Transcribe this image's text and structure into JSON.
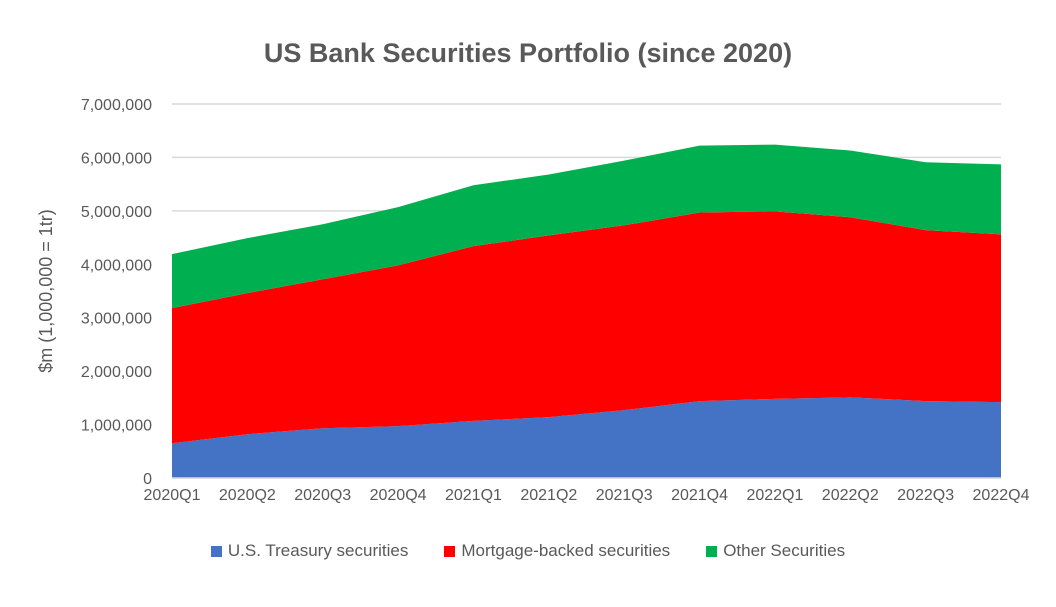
{
  "chart_data": {
    "type": "area",
    "stacked": true,
    "title": "US Bank Securities Portfolio (since 2020)",
    "xlabel": "",
    "ylabel": "$m (1,000,000 = 1tr)",
    "ylim": [
      0,
      7000000
    ],
    "yticks": [
      "0",
      "1,000,000",
      "2,000,000",
      "3,000,000",
      "4,000,000",
      "5,000,000",
      "6,000,000",
      "7,000,000"
    ],
    "grid": true,
    "legend_placement": "bottom",
    "categories": [
      "2020Q1",
      "2020Q2",
      "2020Q3",
      "2020Q4",
      "2021Q1",
      "2021Q2",
      "2021Q3",
      "2021Q4",
      "2022Q1",
      "2022Q2",
      "2022Q3",
      "2022Q4"
    ],
    "series": [
      {
        "name": "U.S. Treasury securities",
        "color": "#4472C4",
        "values": [
          650000,
          820000,
          930000,
          970000,
          1070000,
          1140000,
          1270000,
          1440000,
          1480000,
          1510000,
          1440000,
          1420000
        ]
      },
      {
        "name": "Mortgage-backed securities",
        "color": "#FF0000",
        "values": [
          2530000,
          2640000,
          2790000,
          3010000,
          3270000,
          3400000,
          3460000,
          3530000,
          3510000,
          3370000,
          3200000,
          3140000
        ]
      },
      {
        "name": "Other Securities",
        "color": "#00B050",
        "values": [
          1010000,
          1030000,
          1030000,
          1090000,
          1140000,
          1140000,
          1210000,
          1250000,
          1250000,
          1250000,
          1270000,
          1310000
        ]
      }
    ]
  }
}
